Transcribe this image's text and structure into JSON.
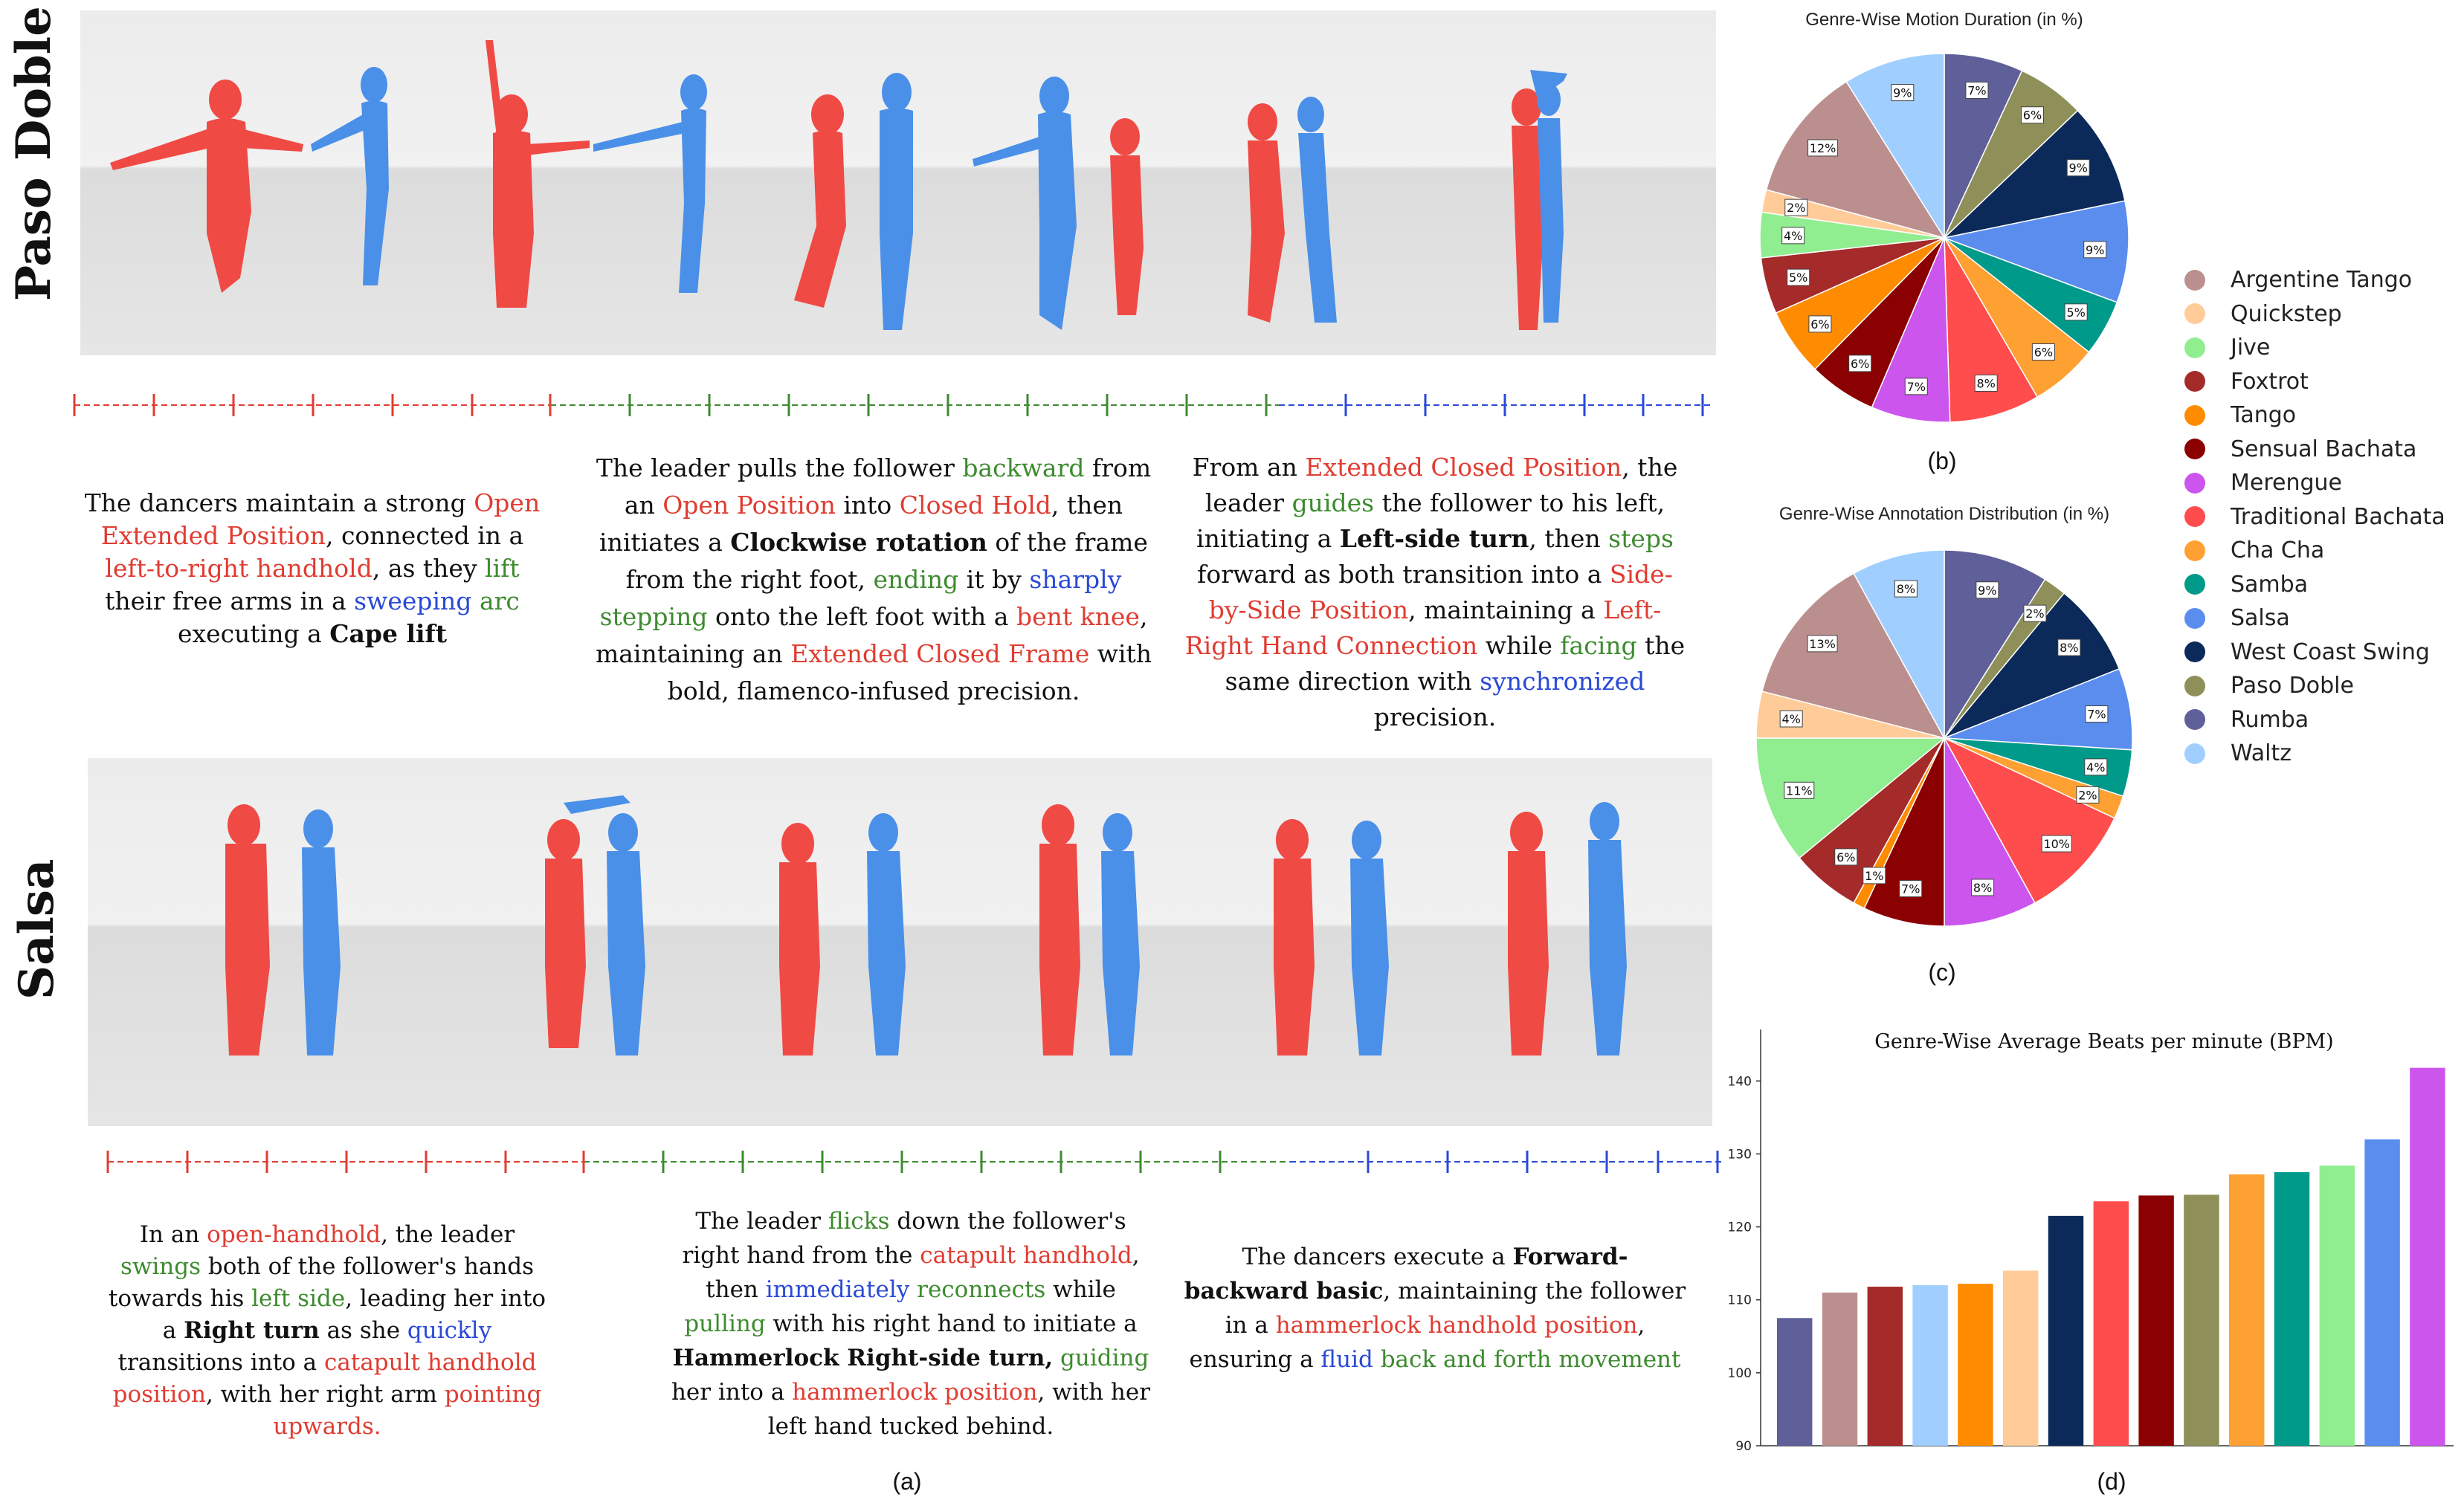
{
  "figure": {
    "row_labels": [
      "Paso Doble",
      "Salsa"
    ],
    "sub_a": "(a)",
    "sub_b": "(b)",
    "sub_c": "(c)",
    "sub_d": "(d)"
  },
  "captions": {
    "paso_1": [
      {
        "t": "The dancers maintain a strong ",
        "c": ""
      },
      {
        "t": "Open Extended Position",
        "c": "r"
      },
      {
        "t": ", connected in a ",
        "c": ""
      },
      {
        "t": "left-to-right handhold",
        "c": "r"
      },
      {
        "t": ", as they ",
        "c": ""
      },
      {
        "t": "lift",
        "c": "g"
      },
      {
        "t": " their free arms in a ",
        "c": ""
      },
      {
        "t": "sweeping",
        "c": "b"
      },
      {
        "t": " ",
        "c": ""
      },
      {
        "t": "arc",
        "c": "g"
      },
      {
        "t": " executing a ",
        "c": ""
      },
      {
        "t": "Cape lift",
        "c": "bold"
      }
    ],
    "paso_2": [
      {
        "t": "The leader pulls the follower ",
        "c": ""
      },
      {
        "t": "backward",
        "c": "g"
      },
      {
        "t": " from an ",
        "c": ""
      },
      {
        "t": "Open Position",
        "c": "r"
      },
      {
        "t": " into ",
        "c": ""
      },
      {
        "t": "Closed Hold",
        "c": "r"
      },
      {
        "t": ", then initiates a ",
        "c": ""
      },
      {
        "t": "Clockwise rotation",
        "c": "bold"
      },
      {
        "t": " of the frame from the right foot, ",
        "c": ""
      },
      {
        "t": "ending",
        "c": "g"
      },
      {
        "t": " it by ",
        "c": ""
      },
      {
        "t": "sharply",
        "c": "b"
      },
      {
        "t": " ",
        "c": ""
      },
      {
        "t": "stepping",
        "c": "g"
      },
      {
        "t": " onto the left foot with a ",
        "c": ""
      },
      {
        "t": "bent knee",
        "c": "r"
      },
      {
        "t": ", maintaining an ",
        "c": ""
      },
      {
        "t": "Extended Closed Frame",
        "c": "r"
      },
      {
        "t": " with bold, flamenco-infused precision.",
        "c": ""
      }
    ],
    "paso_3": [
      {
        "t": "From an ",
        "c": ""
      },
      {
        "t": "Extended Closed Position",
        "c": "r"
      },
      {
        "t": ", the leader ",
        "c": ""
      },
      {
        "t": "guides",
        "c": "g"
      },
      {
        "t": " the follower to his left, initiating a ",
        "c": ""
      },
      {
        "t": "Left-side turn",
        "c": "bold"
      },
      {
        "t": ", then ",
        "c": ""
      },
      {
        "t": "steps",
        "c": "g"
      },
      {
        "t": " forward as both transition into a ",
        "c": ""
      },
      {
        "t": "Side-by-Side Position",
        "c": "r"
      },
      {
        "t": ", maintaining a ",
        "c": ""
      },
      {
        "t": "Left-Right Hand Connection",
        "c": "r"
      },
      {
        "t": " while ",
        "c": ""
      },
      {
        "t": "facing",
        "c": "g"
      },
      {
        "t": " the same direction with ",
        "c": ""
      },
      {
        "t": "synchronized",
        "c": "b"
      },
      {
        "t": " precision.",
        "c": ""
      }
    ],
    "salsa_1": [
      {
        "t": "In an ",
        "c": ""
      },
      {
        "t": "open-handhold",
        "c": "r"
      },
      {
        "t": ", the leader ",
        "c": ""
      },
      {
        "t": "swings",
        "c": "g"
      },
      {
        "t": " both of the follower's hands towards his ",
        "c": ""
      },
      {
        "t": "left side",
        "c": "g"
      },
      {
        "t": ", leading her into a ",
        "c": ""
      },
      {
        "t": "Right turn",
        "c": "bold"
      },
      {
        "t": " as she ",
        "c": ""
      },
      {
        "t": "quickly",
        "c": "b"
      },
      {
        "t": " transitions into a ",
        "c": ""
      },
      {
        "t": "catapult handhold position",
        "c": "r"
      },
      {
        "t": ", with her right arm ",
        "c": ""
      },
      {
        "t": "pointing upwards.",
        "c": "r"
      }
    ],
    "salsa_2": [
      {
        "t": "The leader ",
        "c": ""
      },
      {
        "t": "flicks",
        "c": "g"
      },
      {
        "t": " down the follower's right hand from the ",
        "c": ""
      },
      {
        "t": "catapult handhold",
        "c": "r"
      },
      {
        "t": ", then ",
        "c": ""
      },
      {
        "t": "immediately",
        "c": "b"
      },
      {
        "t": " ",
        "c": ""
      },
      {
        "t": "reconnects",
        "c": "g"
      },
      {
        "t": " while ",
        "c": ""
      },
      {
        "t": "pulling",
        "c": "g"
      },
      {
        "t": " with his right hand to initiate a ",
        "c": ""
      },
      {
        "t": "Hammerlock Right-side turn,",
        "c": "bold"
      },
      {
        "t": " ",
        "c": ""
      },
      {
        "t": "guiding",
        "c": "g"
      },
      {
        "t": " her into a ",
        "c": ""
      },
      {
        "t": "hammerlock position",
        "c": "r"
      },
      {
        "t": ", with her left hand tucked behind.",
        "c": ""
      }
    ],
    "salsa_3": [
      {
        "t": "The dancers execute a ",
        "c": ""
      },
      {
        "t": "Forward-backward basic",
        "c": "bold"
      },
      {
        "t": ", maintaining the follower in a ",
        "c": ""
      },
      {
        "t": "hammerlock handhold position",
        "c": "r"
      },
      {
        "t": ", ensuring a ",
        "c": ""
      },
      {
        "t": "fluid",
        "c": "b"
      },
      {
        "t": " ",
        "c": ""
      },
      {
        "t": "back and forth movement",
        "c": "g"
      }
    ]
  },
  "legend": {
    "items": [
      {
        "label": "Argentine Tango",
        "color": "#bc8f8f"
      },
      {
        "label": "Quickstep",
        "color": "#ffcc99"
      },
      {
        "label": "Jive",
        "color": "#90ee90"
      },
      {
        "label": "Foxtrot",
        "color": "#a52a2a"
      },
      {
        "label": "Tango",
        "color": "#ff8c00"
      },
      {
        "label": "Sensual Bachata",
        "color": "#8b0000"
      },
      {
        "label": "Merengue",
        "color": "#cc55ee"
      },
      {
        "label": "Traditional Bachata",
        "color": "#ff4c4c"
      },
      {
        "label": "Cha Cha",
        "color": "#ffa033"
      },
      {
        "label": "Samba",
        "color": "#009a8a"
      },
      {
        "label": "Salsa",
        "color": "#5b8def"
      },
      {
        "label": "West Coast Swing",
        "color": "#0b2a5a"
      },
      {
        "label": "Paso Doble",
        "color": "#8f8f5a"
      },
      {
        "label": "Rumba",
        "color": "#5f5f99"
      },
      {
        "label": "Waltz",
        "color": "#a0cfff"
      }
    ]
  },
  "chart_data": [
    {
      "type": "pie",
      "title": "Genre-Wise Motion Duration (in %)",
      "slices": [
        {
          "label": "Rumba",
          "value": 7,
          "color": "#5f5f99"
        },
        {
          "label": "Paso Doble",
          "value": 6,
          "color": "#8f8f5a"
        },
        {
          "label": "West Coast Swing",
          "value": 9,
          "color": "#0b2a5a"
        },
        {
          "label": "Salsa",
          "value": 9,
          "color": "#5b8def"
        },
        {
          "label": "Samba",
          "value": 5,
          "color": "#009a8a"
        },
        {
          "label": "Cha Cha",
          "value": 6,
          "color": "#ffa033"
        },
        {
          "label": "Traditional Bachata",
          "value": 8,
          "color": "#ff4c4c"
        },
        {
          "label": "Merengue",
          "value": 7,
          "color": "#cc55ee"
        },
        {
          "label": "Sensual Bachata",
          "value": 6,
          "color": "#8b0000"
        },
        {
          "label": "Tango",
          "value": 6,
          "color": "#ff8c00"
        },
        {
          "label": "Foxtrot",
          "value": 5,
          "color": "#a52a2a"
        },
        {
          "label": "Jive",
          "value": 4,
          "color": "#90ee90"
        },
        {
          "label": "Quickstep",
          "value": 2,
          "color": "#ffcc99"
        },
        {
          "label": "Argentine Tango",
          "value": 12,
          "color": "#bc8f8f"
        },
        {
          "label": "Waltz",
          "value": 9,
          "color": "#a0cfff"
        }
      ]
    },
    {
      "type": "pie",
      "title": "Genre-Wise Annotation Distribution (in %)",
      "slices": [
        {
          "label": "Rumba",
          "value": 9,
          "color": "#5f5f99"
        },
        {
          "label": "Paso Doble",
          "value": 2,
          "color": "#8f8f5a"
        },
        {
          "label": "West Coast Swing",
          "value": 8,
          "color": "#0b2a5a"
        },
        {
          "label": "Salsa",
          "value": 7,
          "color": "#5b8def"
        },
        {
          "label": "Samba",
          "value": 4,
          "color": "#009a8a"
        },
        {
          "label": "Cha Cha",
          "value": 2,
          "color": "#ffa033"
        },
        {
          "label": "Traditional Bachata",
          "value": 10,
          "color": "#ff4c4c"
        },
        {
          "label": "Merengue",
          "value": 8,
          "color": "#cc55ee"
        },
        {
          "label": "Sensual Bachata",
          "value": 7,
          "color": "#8b0000"
        },
        {
          "label": "Tango",
          "value": 1,
          "color": "#ff8c00"
        },
        {
          "label": "Foxtrot",
          "value": 6,
          "color": "#a52a2a"
        },
        {
          "label": "Jive",
          "value": 11,
          "color": "#90ee90"
        },
        {
          "label": "Quickstep",
          "value": 4,
          "color": "#ffcc99"
        },
        {
          "label": "Argentine Tango",
          "value": 13,
          "color": "#bc8f8f"
        },
        {
          "label": "Waltz",
          "value": 8,
          "color": "#a0cfff"
        }
      ]
    },
    {
      "type": "bar",
      "title": "Genre-Wise Average Beats per minute (BPM)",
      "ylim": [
        90,
        144
      ],
      "yticks": [
        90,
        100,
        110,
        120,
        130,
        140
      ],
      "categories": [
        "Rumba",
        "Argentine Tango",
        "Foxtrot",
        "Waltz",
        "Tango",
        "Quickstep",
        "West Coast Swing",
        "Traditional Bachata",
        "Sensual Bachata",
        "Paso Doble",
        "Cha Cha",
        "Samba",
        "Jive",
        "Salsa",
        "Merengue"
      ],
      "values": [
        107.5,
        111,
        111.8,
        112,
        112.2,
        114,
        121.5,
        123.5,
        124.3,
        124.4,
        127.2,
        127.5,
        128.4,
        132,
        141.8
      ],
      "colors": [
        "#5f5f99",
        "#bc8f8f",
        "#a52a2a",
        "#a0cfff",
        "#ff8c00",
        "#ffcc99",
        "#0b2a5a",
        "#ff4c4c",
        "#8b0000",
        "#8f8f5a",
        "#ffa033",
        "#009a8a",
        "#90ee90",
        "#5b8def",
        "#cc55ee"
      ]
    }
  ]
}
